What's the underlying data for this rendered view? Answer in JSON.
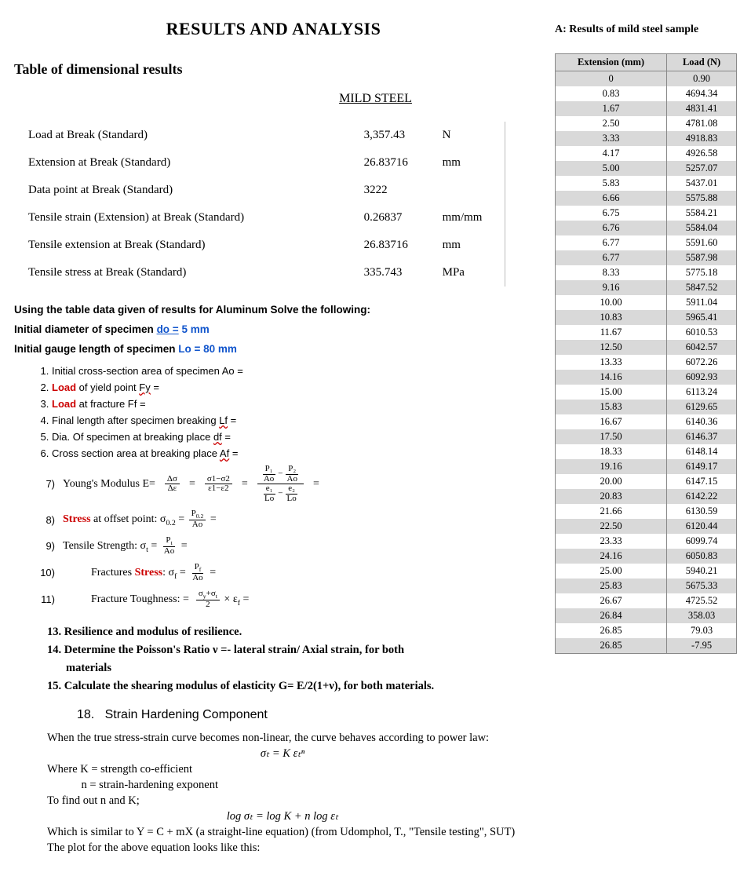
{
  "main_title": "RESULTS AND ANALYSIS",
  "left": {
    "subheading": "Table of dimensional results",
    "steel_label": "MILD STEEL",
    "dimrows": [
      {
        "label": "Load at Break (Standard)",
        "val": "3,357.43",
        "unit": "N"
      },
      {
        "label": "Extension at Break (Standard)",
        "val": "26.83716",
        "unit": "mm"
      },
      {
        "label": "Data point at Break (Standard)",
        "val": "3222",
        "unit": ""
      },
      {
        "label": "Tensile strain (Extension) at Break (Standard)",
        "val": "0.26837",
        "unit": "mm/mm"
      },
      {
        "label": "Tensile extension at Break (Standard)",
        "val": "26.83716",
        "unit": "mm"
      },
      {
        "label": "Tensile stress at Break (Standard)",
        "val": "335.743",
        "unit": "MPa"
      }
    ],
    "note_intro": "Using the table data given of results for Aluminum Solve the following:",
    "diam_pre": "Initial diameter of specimen ",
    "diam_link": "do  =",
    "diam_post": " 5 mm",
    "gauge_pre": "Initial gauge length of specimen ",
    "gauge_lo": "Lo = 80 mm",
    "q": {
      "q1": "Initial cross-section area of specimen Ao =",
      "q2_a": "Load",
      "q2_b": " of yield point ",
      "q2_w": "Fy",
      "q2_c": " =",
      "q3_a": "Load",
      "q3_b": " at fracture Ff =",
      "q4_a": "Final length after specimen breaking ",
      "q4_w": "Lf",
      "q4_b": " =",
      "q5_a": "Dia. Of specimen at breaking place ",
      "q5_w": "df",
      "q5_b": " =",
      "q6_a": "Cross section area at breaking place ",
      "q6_w": "Af",
      "q6_b": " ="
    },
    "eq": {
      "e7_label": "Young's Modulus E=",
      "e8_pre": "Stress",
      "e8_mid": " at offset point: σ",
      "e9": "Tensile Strength: σ",
      "e10_pre": "Fractures ",
      "e10_stress": "Stress",
      "e10_post": ": σ",
      "e11": "Fracture Toughness: ="
    },
    "sec13": {
      "l13": "13. Resilience and modulus of resilience.",
      "l14a": "14. Determine the Poisson's Ratio ν =- lateral strain/ Axial strain, for both",
      "l14b": "materials",
      "l15": "15. Calculate the shearing modulus of elasticity G= E/2(1+ν), for both materials."
    },
    "sh": {
      "title_num": "18.",
      "title": "Strain Hardening Component",
      "p1": "When the true stress-strain curve becomes non-linear, the curve behaves according to power law:",
      "eq1": "σₜ = K εₜⁿ",
      "p2": "Where   K = strength co-efficient",
      "p3": "            n = strain-hardening exponent",
      "p4": "To find out n and K;",
      "eq2": "log σₜ = log K + n log εₜ",
      "p5": "Which is similar to Y = C + mX (a straight-line equation) (from Udomphol, T., \"Tensile testing\", SUT)",
      "p6": "The plot for the above equation looks like this:"
    }
  },
  "right": {
    "title": "A: Results of mild steel sample",
    "headers": {
      "ext": "Extension (mm)",
      "load": "Load (N)"
    },
    "rows": [
      [
        "0",
        "0.90"
      ],
      [
        "0.83",
        "4694.34"
      ],
      [
        "1.67",
        "4831.41"
      ],
      [
        "2.50",
        "4781.08"
      ],
      [
        "3.33",
        "4918.83"
      ],
      [
        "4.17",
        "4926.58"
      ],
      [
        "5.00",
        "5257.07"
      ],
      [
        "5.83",
        "5437.01"
      ],
      [
        "6.66",
        "5575.88"
      ],
      [
        "6.75",
        "5584.21"
      ],
      [
        "6.76",
        "5584.04"
      ],
      [
        "6.77",
        "5591.60"
      ],
      [
        "6.77",
        "5587.98"
      ],
      [
        "8.33",
        "5775.18"
      ],
      [
        "9.16",
        "5847.52"
      ],
      [
        "10.00",
        "5911.04"
      ],
      [
        "10.83",
        "5965.41"
      ],
      [
        "11.67",
        "6010.53"
      ],
      [
        "12.50",
        "6042.57"
      ],
      [
        "13.33",
        "6072.26"
      ],
      [
        "14.16",
        "6092.93"
      ],
      [
        "15.00",
        "6113.24"
      ],
      [
        "15.83",
        "6129.65"
      ],
      [
        "16.67",
        "6140.36"
      ],
      [
        "17.50",
        "6146.37"
      ],
      [
        "18.33",
        "6148.14"
      ],
      [
        "19.16",
        "6149.17"
      ],
      [
        "20.00",
        "6147.15"
      ],
      [
        "20.83",
        "6142.22"
      ],
      [
        "21.66",
        "6130.59"
      ],
      [
        "22.50",
        "6120.44"
      ],
      [
        "23.33",
        "6099.74"
      ],
      [
        "24.16",
        "6050.83"
      ],
      [
        "25.00",
        "5940.21"
      ],
      [
        "25.83",
        "5675.33"
      ],
      [
        "26.67",
        "4725.52"
      ],
      [
        "26.84",
        "358.03"
      ],
      [
        "26.85",
        "79.03"
      ],
      [
        "26.85",
        "-7.95"
      ]
    ]
  },
  "colors": {
    "red": "#cc0000",
    "blue": "#1155cc",
    "grey": "#d9d9d9"
  }
}
